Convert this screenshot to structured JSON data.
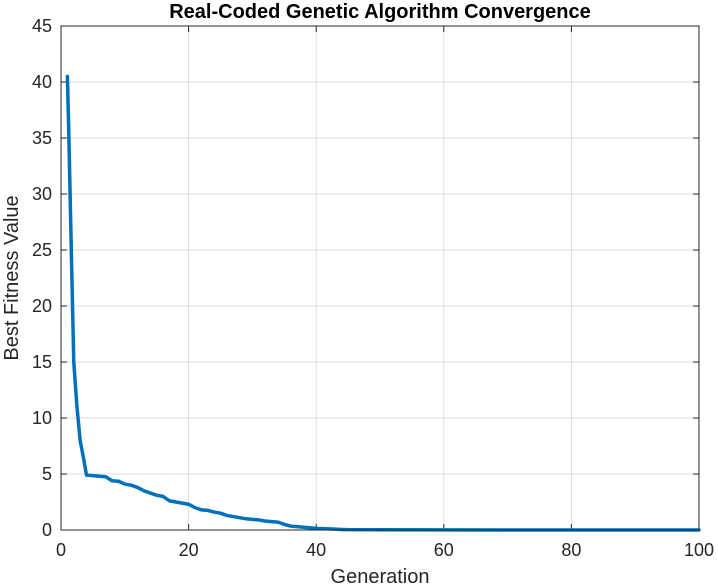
{
  "chart_data": {
    "type": "line",
    "title": "Real-Coded Genetic Algorithm Convergence",
    "xlabel": "Generation",
    "ylabel": "Best Fitness Value",
    "xlim": [
      0,
      100
    ],
    "ylim": [
      0,
      45
    ],
    "xticks": [
      0,
      20,
      40,
      60,
      80,
      100
    ],
    "yticks": [
      0,
      5,
      10,
      15,
      20,
      25,
      30,
      35,
      40,
      45
    ],
    "grid": true,
    "legend": "none",
    "colors": {
      "series": "#0072bd",
      "grid": "#dedede",
      "axes": "#262626"
    },
    "series": [
      {
        "x": [
          1,
          1.2,
          1.5,
          2,
          2.5,
          3,
          3.5,
          4,
          5,
          6,
          7,
          8,
          9,
          10,
          11,
          12,
          13,
          14,
          15,
          16,
          17,
          18,
          19,
          20,
          21,
          22,
          23,
          24,
          25,
          26,
          27,
          28,
          29,
          30,
          31,
          32,
          33,
          34,
          35,
          36,
          37,
          38,
          39,
          40,
          41,
          42,
          43,
          44,
          45,
          50,
          60,
          70,
          80,
          90,
          100
        ],
        "values": [
          40.5,
          36.0,
          28.0,
          15.0,
          11.0,
          8.0,
          6.5,
          4.9,
          4.85,
          4.8,
          4.75,
          4.4,
          4.35,
          4.1,
          4.0,
          3.8,
          3.5,
          3.3,
          3.1,
          3.0,
          2.6,
          2.5,
          2.4,
          2.3,
          2.0,
          1.8,
          1.75,
          1.6,
          1.5,
          1.3,
          1.2,
          1.1,
          1.0,
          0.95,
          0.9,
          0.8,
          0.75,
          0.7,
          0.5,
          0.35,
          0.3,
          0.25,
          0.2,
          0.15,
          0.12,
          0.1,
          0.08,
          0.05,
          0.03,
          0.02,
          0.01,
          0.005,
          0.003,
          0.002,
          0.001
        ]
      }
    ]
  }
}
